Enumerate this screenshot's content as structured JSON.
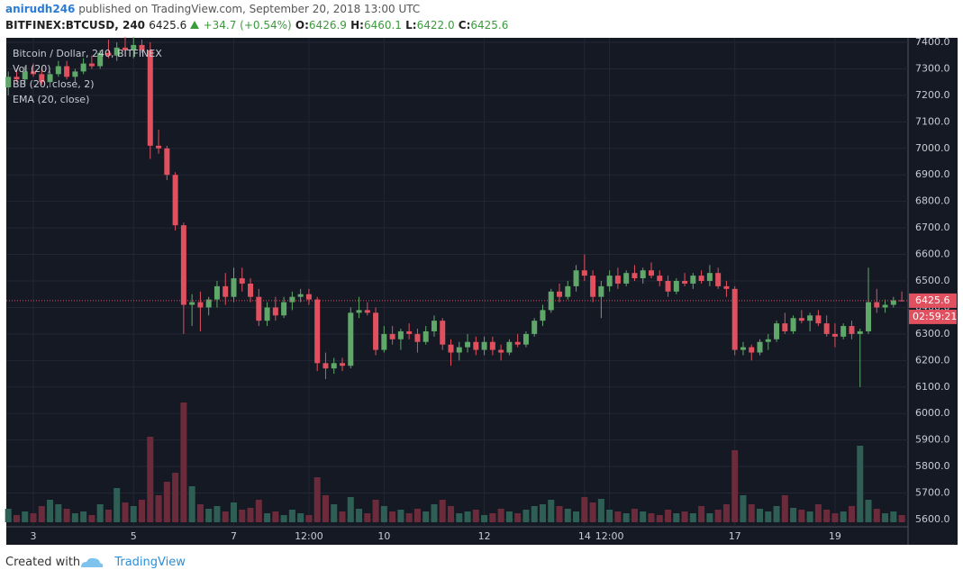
{
  "header": {
    "user": "anirudh246",
    "published": "published on TradingView.com, September 20, 2018 13:00 UTC",
    "symbol": "BITFINEX:BTCUSD, 240",
    "price": "6425.6",
    "change": "+34.7 (+0.54%)",
    "o_label": "O:",
    "open": "6426.9",
    "h_label": "H:",
    "high": "6460.1",
    "l_label": "L:",
    "low": "6422.0",
    "c_label": "C:",
    "close": "6425.6"
  },
  "footer": {
    "created": "Created with",
    "brand": "TradingView"
  },
  "chart_data": {
    "type": "candlestick",
    "title": "Bitcoin / Dollar, 240, BITFINEX",
    "indicators": [
      "Vol (20)",
      "BB (20, close, 2)",
      "EMA (20, close)"
    ],
    "countdown": "02:59:21",
    "up_color": "#5fa86a",
    "down_color": "#e0505f",
    "up_volume_color": "#2f5f54",
    "down_volume_color": "#6b2b3a",
    "grid": true,
    "categories": [
      null,
      null,
      null,
      "3",
      null,
      null,
      null,
      null,
      null,
      null,
      null,
      null,
      null,
      null,
      null,
      "5",
      null,
      null,
      null,
      null,
      null,
      null,
      null,
      null,
      null,
      null,
      null,
      "7",
      null,
      null,
      null,
      null,
      null,
      null,
      null,
      null,
      "12:00",
      null,
      null,
      null,
      null,
      null,
      null,
      null,
      null,
      "10",
      null,
      null,
      null,
      null,
      null,
      null,
      null,
      null,
      null,
      null,
      null,
      "12",
      null,
      null,
      null,
      null,
      null,
      null,
      null,
      null,
      null,
      null,
      null,
      "14",
      null,
      null,
      "12:00",
      null,
      null,
      null,
      null,
      null,
      null,
      null,
      null,
      null,
      null,
      null,
      null,
      null,
      null,
      "17",
      null,
      null,
      null,
      null,
      null,
      null,
      null,
      null,
      null,
      null,
      null,
      "19",
      null,
      null,
      null,
      null,
      null,
      null,
      null,
      null
    ],
    "candles": [
      [
        7230,
        7290,
        7200,
        7270
      ],
      [
        7270,
        7300,
        7250,
        7260
      ],
      [
        7260,
        7310,
        7240,
        7290
      ],
      [
        7290,
        7320,
        7270,
        7280
      ],
      [
        7280,
        7300,
        7240,
        7250
      ],
      [
        7250,
        7290,
        7230,
        7280
      ],
      [
        7280,
        7330,
        7270,
        7310
      ],
      [
        7310,
        7330,
        7260,
        7270
      ],
      [
        7270,
        7300,
        7250,
        7290
      ],
      [
        7290,
        7340,
        7280,
        7320
      ],
      [
        7320,
        7350,
        7300,
        7310
      ],
      [
        7310,
        7370,
        7300,
        7360
      ],
      [
        7360,
        7410,
        7340,
        7350
      ],
      [
        7350,
        7400,
        7330,
        7380
      ],
      [
        7380,
        7420,
        7350,
        7370
      ],
      [
        7370,
        7420,
        7340,
        7390
      ],
      [
        7390,
        7410,
        7360,
        7370
      ],
      [
        7370,
        7400,
        6960,
        7010
      ],
      [
        7010,
        7070,
        6980,
        7000
      ],
      [
        7000,
        7010,
        6880,
        6900
      ],
      [
        6900,
        6910,
        6690,
        6710
      ],
      [
        6710,
        6720,
        6300,
        6410
      ],
      [
        6410,
        6450,
        6330,
        6420
      ],
      [
        6420,
        6460,
        6310,
        6400
      ],
      [
        6400,
        6440,
        6370,
        6430
      ],
      [
        6430,
        6500,
        6400,
        6480
      ],
      [
        6480,
        6530,
        6410,
        6440
      ],
      [
        6440,
        6550,
        6420,
        6510
      ],
      [
        6510,
        6550,
        6460,
        6490
      ],
      [
        6490,
        6510,
        6420,
        6440
      ],
      [
        6440,
        6470,
        6330,
        6350
      ],
      [
        6350,
        6420,
        6330,
        6400
      ],
      [
        6400,
        6440,
        6350,
        6370
      ],
      [
        6370,
        6440,
        6360,
        6420
      ],
      [
        6420,
        6460,
        6390,
        6440
      ],
      [
        6440,
        6470,
        6420,
        6450
      ],
      [
        6450,
        6470,
        6410,
        6430
      ],
      [
        6430,
        6440,
        6160,
        6190
      ],
      [
        6190,
        6230,
        6130,
        6170
      ],
      [
        6170,
        6210,
        6150,
        6190
      ],
      [
        6190,
        6210,
        6160,
        6180
      ],
      [
        6180,
        6400,
        6170,
        6380
      ],
      [
        6380,
        6440,
        6360,
        6390
      ],
      [
        6390,
        6420,
        6370,
        6380
      ],
      [
        6380,
        6400,
        6220,
        6240
      ],
      [
        6240,
        6330,
        6230,
        6300
      ],
      [
        6300,
        6330,
        6260,
        6280
      ],
      [
        6280,
        6320,
        6240,
        6310
      ],
      [
        6310,
        6340,
        6280,
        6300
      ],
      [
        6300,
        6320,
        6230,
        6270
      ],
      [
        6270,
        6330,
        6260,
        6310
      ],
      [
        6310,
        6370,
        6290,
        6350
      ],
      [
        6350,
        6360,
        6240,
        6260
      ],
      [
        6260,
        6280,
        6180,
        6230
      ],
      [
        6230,
        6270,
        6200,
        6250
      ],
      [
        6250,
        6300,
        6230,
        6270
      ],
      [
        6270,
        6290,
        6220,
        6240
      ],
      [
        6240,
        6290,
        6220,
        6270
      ],
      [
        6270,
        6290,
        6220,
        6240
      ],
      [
        6240,
        6260,
        6200,
        6230
      ],
      [
        6230,
        6280,
        6220,
        6270
      ],
      [
        6270,
        6300,
        6250,
        6260
      ],
      [
        6260,
        6310,
        6250,
        6300
      ],
      [
        6300,
        6360,
        6290,
        6350
      ],
      [
        6350,
        6410,
        6330,
        6390
      ],
      [
        6390,
        6470,
        6380,
        6460
      ],
      [
        6460,
        6490,
        6420,
        6440
      ],
      [
        6440,
        6500,
        6430,
        6480
      ],
      [
        6480,
        6560,
        6460,
        6540
      ],
      [
        6540,
        6600,
        6500,
        6520
      ],
      [
        6520,
        6540,
        6420,
        6440
      ],
      [
        6440,
        6500,
        6360,
        6480
      ],
      [
        6480,
        6540,
        6460,
        6520
      ],
      [
        6520,
        6550,
        6470,
        6490
      ],
      [
        6490,
        6540,
        6480,
        6530
      ],
      [
        6530,
        6560,
        6500,
        6510
      ],
      [
        6510,
        6550,
        6490,
        6540
      ],
      [
        6540,
        6570,
        6510,
        6520
      ],
      [
        6520,
        6540,
        6480,
        6500
      ],
      [
        6500,
        6520,
        6440,
        6460
      ],
      [
        6460,
        6510,
        6450,
        6500
      ],
      [
        6500,
        6530,
        6480,
        6490
      ],
      [
        6490,
        6530,
        6470,
        6520
      ],
      [
        6520,
        6540,
        6490,
        6500
      ],
      [
        6500,
        6560,
        6480,
        6530
      ],
      [
        6530,
        6550,
        6470,
        6480
      ],
      [
        6480,
        6500,
        6440,
        6470
      ],
      [
        6470,
        6480,
        6220,
        6240
      ],
      [
        6240,
        6270,
        6220,
        6250
      ],
      [
        6250,
        6260,
        6200,
        6230
      ],
      [
        6230,
        6280,
        6220,
        6270
      ],
      [
        6270,
        6300,
        6240,
        6280
      ],
      [
        6280,
        6350,
        6270,
        6340
      ],
      [
        6340,
        6380,
        6300,
        6310
      ],
      [
        6310,
        6370,
        6300,
        6360
      ],
      [
        6360,
        6390,
        6340,
        6350
      ],
      [
        6350,
        6380,
        6310,
        6370
      ],
      [
        6370,
        6390,
        6330,
        6340
      ],
      [
        6340,
        6370,
        6290,
        6300
      ],
      [
        6300,
        6340,
        6250,
        6290
      ],
      [
        6290,
        6340,
        6280,
        6330
      ],
      [
        6330,
        6350,
        6280,
        6300
      ],
      [
        6300,
        6320,
        6100,
        6310
      ],
      [
        6310,
        6550,
        6300,
        6420
      ],
      [
        6420,
        6470,
        6380,
        6400
      ],
      [
        6400,
        6430,
        6380,
        6410
      ],
      [
        6410,
        6440,
        6400,
        6427
      ],
      [
        6426.9,
        6460.1,
        6422.0,
        6425.6
      ]
    ],
    "volumes": [
      15,
      8,
      12,
      10,
      18,
      25,
      20,
      15,
      10,
      12,
      8,
      20,
      14,
      38,
      22,
      18,
      25,
      95,
      30,
      45,
      55,
      133,
      40,
      20,
      15,
      18,
      12,
      22,
      14,
      16,
      25,
      10,
      12,
      8,
      14,
      10,
      8,
      50,
      30,
      20,
      12,
      28,
      15,
      10,
      25,
      18,
      12,
      14,
      10,
      15,
      12,
      20,
      25,
      18,
      10,
      12,
      14,
      8,
      10,
      15,
      12,
      10,
      14,
      18,
      20,
      25,
      18,
      15,
      12,
      28,
      22,
      26,
      14,
      12,
      10,
      15,
      12,
      10,
      8,
      14,
      10,
      12,
      10,
      18,
      10,
      14,
      20,
      80,
      30,
      20,
      15,
      12,
      18,
      30,
      16,
      14,
      12,
      20,
      14,
      10,
      12,
      18,
      85,
      25,
      15,
      10,
      12,
      8
    ],
    "ylim": [
      5600,
      7400
    ],
    "yticks": [
      {
        "value": 5600,
        "label": "5600.0"
      },
      {
        "value": 5700,
        "label": "5700.0"
      },
      {
        "value": 5800,
        "label": "5800.0"
      },
      {
        "value": 5900,
        "label": "5900.0"
      },
      {
        "value": 6000,
        "label": "6000.0"
      },
      {
        "value": 6100,
        "label": "6100.0"
      },
      {
        "value": 6200,
        "label": "6200.0"
      },
      {
        "value": 6300,
        "label": "6300.0"
      },
      {
        "value": 6400,
        "label": "6400.0"
      },
      {
        "value": 6500,
        "label": "6500.0"
      },
      {
        "value": 6600,
        "label": "6600.0"
      },
      {
        "value": 6700,
        "label": "6700.0"
      },
      {
        "value": 6800,
        "label": "6800.0"
      },
      {
        "value": 6900,
        "label": "6900.0"
      },
      {
        "value": 7000,
        "label": "7000.0"
      },
      {
        "value": 7100,
        "label": "7100.0"
      },
      {
        "value": 7200,
        "label": "7200.0"
      },
      {
        "value": 7300,
        "label": "7300.0"
      },
      {
        "value": 7400,
        "label": "7400.0"
      }
    ]
  }
}
